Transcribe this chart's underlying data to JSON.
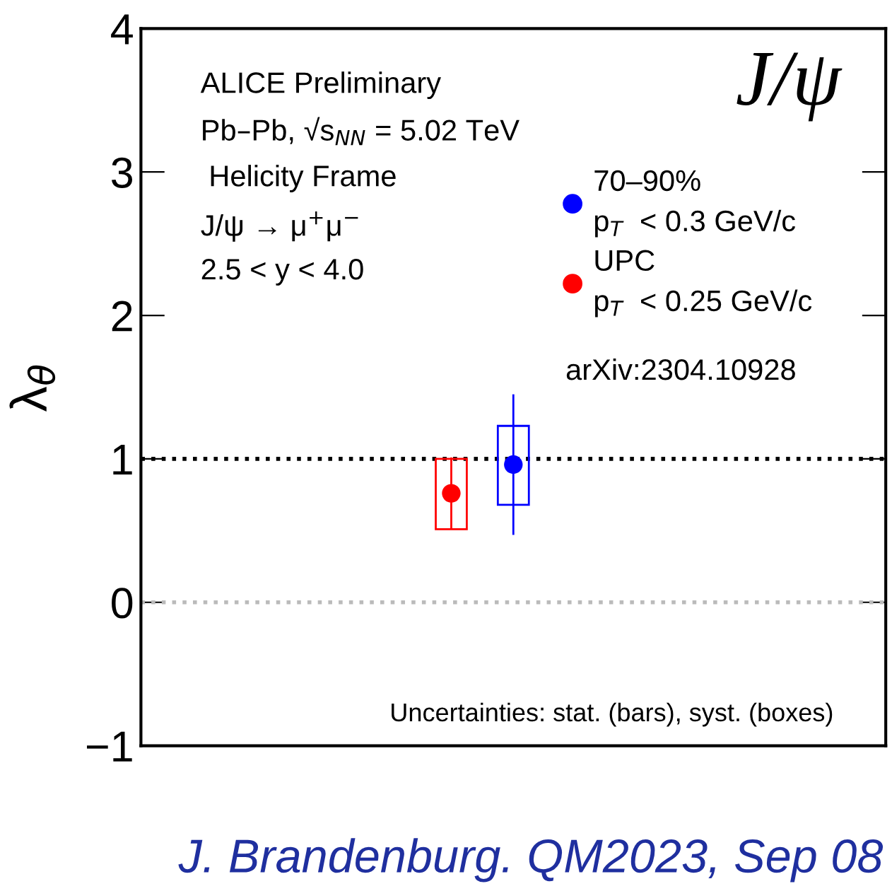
{
  "chart_data": {
    "type": "scatter",
    "ylabel": "λ$_{θ}$",
    "categories": [
      null,
      null,
      null,
      null,
      null,
      null,
      null,
      null,
      null,
      null,
      null
    ],
    "series": [
      {
        "name": "70–90%\np$_{T}$  < 0.3 GeV/c",
        "color": "#0000ff",
        "values": [
          null,
          null,
          null,
          null,
          null,
          0.96,
          null,
          null,
          null,
          null,
          null
        ],
        "errors": [
          null,
          null,
          null,
          null,
          null,
          0.49,
          null,
          null,
          null,
          null,
          null
        ]
      },
      {
        "name": "UPC\np$_{T}$  < 0.25 GeV/c",
        "color": "#ff0000",
        "values": [
          null,
          null,
          null,
          null,
          0.76,
          null,
          null,
          null,
          null,
          null,
          null
        ],
        "errors": [
          null,
          null,
          null,
          null,
          0.25,
          null,
          null,
          null,
          null,
          null,
          null
        ]
      },
      {
        "type": "bar",
        "color": "#0000ff",
        "values": [
          null,
          null,
          null,
          null,
          null,
          0.55,
          null,
          null,
          null,
          null,
          null
        ],
        "base": [
          null,
          null,
          null,
          null,
          null,
          0.68,
          null,
          null,
          null,
          null,
          null
        ]
      },
      {
        "type": "bar",
        "color": "#ff0000",
        "values": [
          null,
          null,
          null,
          null,
          0.49,
          null,
          null,
          null,
          null,
          null,
          null
        ],
        "base": [
          null,
          null,
          null,
          null,
          0.51,
          null,
          null,
          null,
          null,
          null,
          null
        ]
      }
    ],
    "ylim": [
      -1,
      4
    ],
    "yticks": [
      {
        "value": -1,
        "label": "−1"
      },
      0,
      1,
      2,
      3,
      4
    ],
    "tick_labels": "y",
    "marker": "circle",
    "legend": "top right",
    "grid": false,
    "ref_lines": [
      {
        "axis": "y",
        "value": 1,
        "color": "#000000",
        "line_style": "dotted"
      },
      {
        "axis": "y",
        "value": 0,
        "color": "#bbbbbb",
        "line_style": "dotted"
      }
    ],
    "annotations": [
      "ALICE Preliminary",
      "Pb–Pb, √s$_{NN}$ = 5.02 TeV",
      " Helicity Frame",
      "J/ψ → μ$^{+}$μ$^{−}$",
      "2.5 < y < 4.0",
      "J/ψ",
      "arXiv:2304.10928",
      "Uncertainties: stat. (bars), syst. (boxes)",
      "J. Brandenburg. QM2023, Sep 08"
    ]
  }
}
